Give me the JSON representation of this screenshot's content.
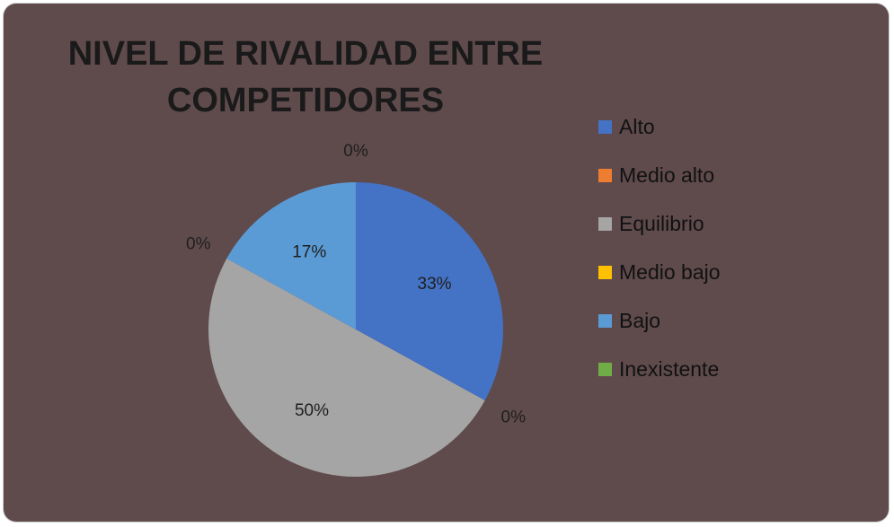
{
  "chart_data": {
    "type": "pie",
    "title_lines": [
      "NIVEL DE RIVALIDAD ENTRE",
      "COMPETIDORES"
    ],
    "slices": [
      {
        "label": "Alto",
        "value": 33,
        "display": "33%",
        "color": "#4472c4"
      },
      {
        "label": "Medio alto",
        "value": 0,
        "display": "0%",
        "color": "#ed7d31"
      },
      {
        "label": "Equilibrio",
        "value": 50,
        "display": "50%",
        "color": "#a5a5a5"
      },
      {
        "label": "Medio bajo",
        "value": 0,
        "display": "0%",
        "color": "#ffc000"
      },
      {
        "label": "Bajo",
        "value": 17,
        "display": "17%",
        "color": "#5b9bd5"
      },
      {
        "label": "Inexistente",
        "value": 0,
        "display": "0%",
        "color": "#70ad47"
      }
    ],
    "legend_position": "right",
    "background_color": "#5f4a4c"
  }
}
